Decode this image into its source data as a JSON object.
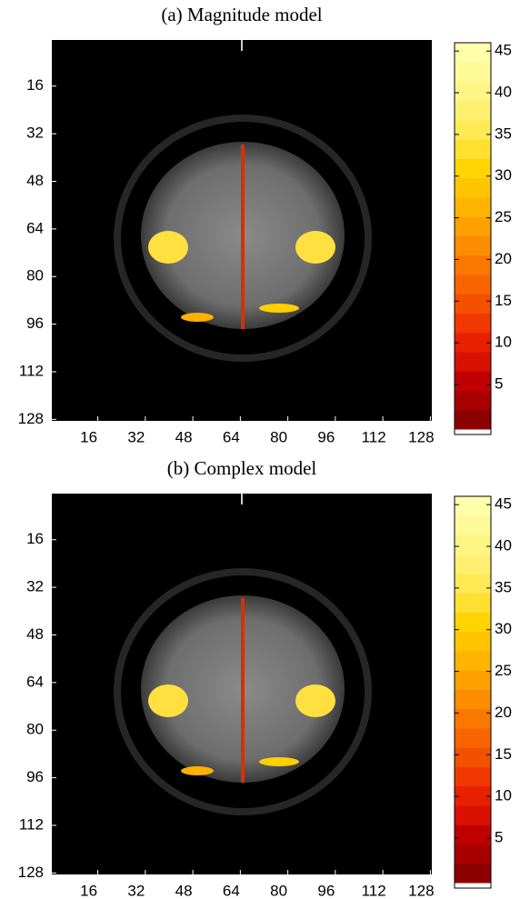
{
  "chart_data": [
    {
      "type": "heatmap",
      "title": "(a) Magnitude model",
      "xlim": [
        0.5,
        128.5
      ],
      "xticks": [
        16,
        32,
        48,
        64,
        80,
        96,
        112,
        128
      ],
      "ylim": [
        0.5,
        128.5
      ],
      "yticks": [
        16,
        32,
        48,
        64,
        80,
        96,
        112,
        128
      ],
      "clim": [
        -1,
        46
      ],
      "cticks": [
        5,
        10,
        15,
        20,
        25,
        30,
        35,
        40,
        45
      ],
      "colormap": [
        "#8c0000",
        "#a80000",
        "#c00000",
        "#d81000",
        "#e82000",
        "#f03800",
        "#f45000",
        "#f86400",
        "#fa7800",
        "#fc8c00",
        "#fda000",
        "#feb400",
        "#ffc400",
        "#ffd400",
        "#ffe030",
        "#ffea55",
        "#fff070",
        "#fff585",
        "#fffa98",
        "#ffffaa"
      ]
    },
    {
      "type": "heatmap",
      "title": "(b) Complex model",
      "xlim": [
        0.5,
        128.5
      ],
      "xticks": [
        16,
        32,
        48,
        64,
        80,
        96,
        112,
        128
      ],
      "ylim": [
        0.5,
        128.5
      ],
      "yticks": [
        16,
        32,
        48,
        64,
        80,
        96,
        112,
        128
      ],
      "clim": [
        -1,
        46
      ],
      "cticks": [
        5,
        10,
        15,
        20,
        25,
        30,
        35,
        40,
        45
      ],
      "colormap": [
        "#8c0000",
        "#a80000",
        "#c00000",
        "#d81000",
        "#e82000",
        "#f03800",
        "#f45000",
        "#f86400",
        "#fa7800",
        "#fc8c00",
        "#fda000",
        "#feb400",
        "#ffc400",
        "#ffd400",
        "#ffe030",
        "#ffea55",
        "#fff070",
        "#fff585",
        "#fffa98",
        "#ffffaa"
      ]
    }
  ]
}
